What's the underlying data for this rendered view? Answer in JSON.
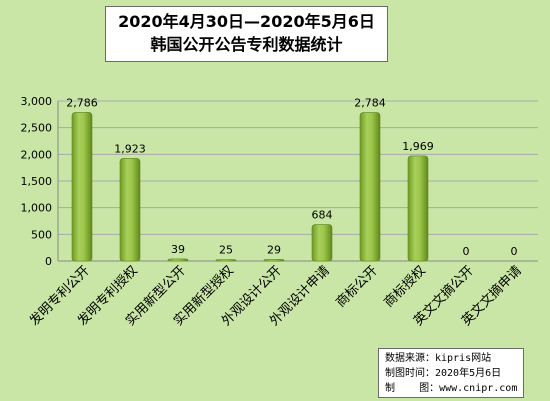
{
  "chart_data": {
    "type": "bar",
    "title": "2020年4月30日—2020年5月6日",
    "subtitle": "韩国公开公告专利数据统计",
    "categories": [
      "发明专利公开",
      "发明专利授权",
      "实用新型公开",
      "实用新型授权",
      "外观设计公开",
      "外观设计申请",
      "商标公开",
      "商标授权",
      "英文文摘公开",
      "英文文摘申请"
    ],
    "values": [
      2786,
      1923,
      39,
      25,
      29,
      684,
      2784,
      1969,
      0,
      0
    ],
    "data_labels": [
      "2,786",
      "1,923",
      "39",
      "25",
      "29",
      "684",
      "2,784",
      "1,969",
      "0",
      "0"
    ],
    "ylim": [
      0,
      3000
    ],
    "yticks": [
      0,
      500,
      1000,
      1500,
      2000,
      2500,
      3000
    ],
    "ytick_labels": [
      "0",
      "500",
      "1,000",
      "1,500",
      "2,000",
      "2,500",
      "3,000"
    ],
    "grid": true,
    "bar_color": "#8cb43a",
    "background": "#c9e6a6"
  },
  "source": {
    "line1": "数据来源：kipris网站",
    "line2": "制图时间：2020年5月6日",
    "line3": "制    图：www.cnipr.com"
  }
}
